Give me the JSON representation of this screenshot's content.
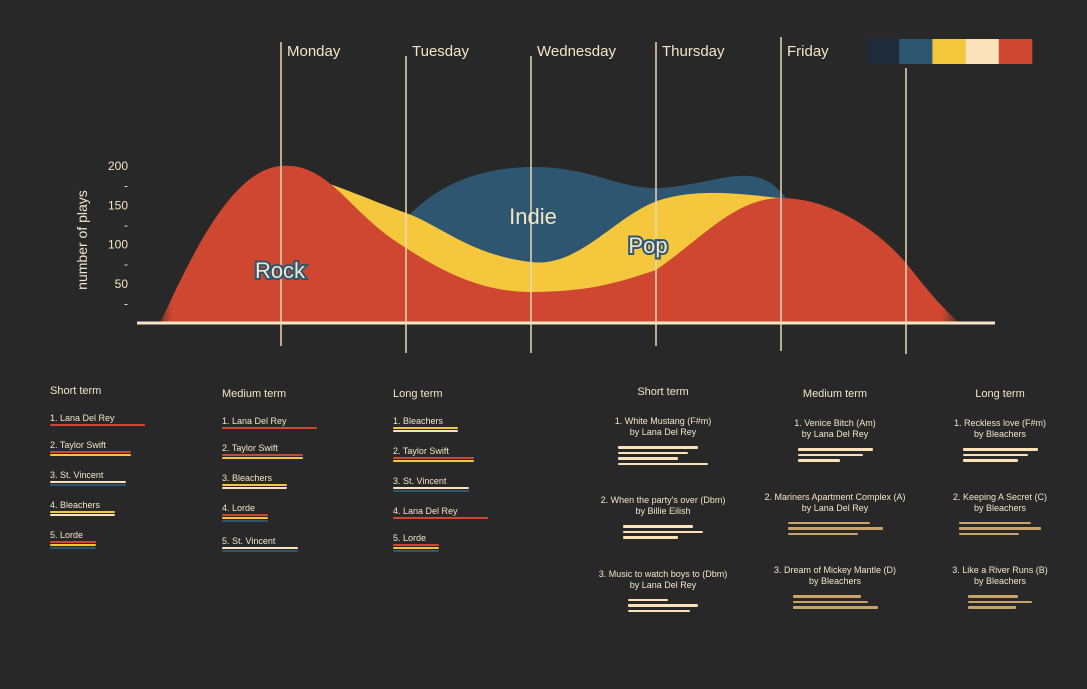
{
  "colors": {
    "background": "#282828",
    "cream": "#f3e6c8",
    "palette": [
      "#1f2a3a",
      "#2f5670",
      "#f5c73d",
      "#fbe2b8",
      "#cf4730"
    ],
    "rock": "#cf4730",
    "pop": "#f5c73d",
    "indie": "#2f5670",
    "tan": "#c9a36a"
  },
  "chart_data": {
    "type": "area",
    "x": [
      "Monday",
      "Tuesday",
      "Wednesday",
      "Thursday",
      "Friday"
    ],
    "ylabel": "number of plays",
    "yticks": [
      "200",
      "150",
      "100",
      "50"
    ],
    "ylim": [
      0,
      200
    ],
    "stacked": true,
    "series": [
      {
        "name": "Rock",
        "color": "#cf4730",
        "values": [
          200,
          130,
          40,
          120,
          60
        ]
      },
      {
        "name": "Pop",
        "color": "#f5c73d",
        "values": [
          0,
          45,
          50,
          35,
          0
        ]
      },
      {
        "name": "Indie",
        "color": "#2f5670",
        "values": [
          0,
          0,
          110,
          35,
          0
        ]
      }
    ],
    "legend": "top-right"
  },
  "artists": {
    "columns": [
      {
        "title": "Short term",
        "items": [
          {
            "label": "1. Lana Del Rey",
            "lines": [
              "#cf4730"
            ]
          },
          {
            "label": "2. Taylor Swift",
            "lines": [
              "#cf4730",
              "#f5c73d"
            ]
          },
          {
            "label": "3. St. Vincent",
            "lines": [
              "#fbe2b8",
              "#2f5670"
            ]
          },
          {
            "label": "4. Bleachers",
            "lines": [
              "#f5c73d",
              "#fbe2b8"
            ]
          },
          {
            "label": "5. Lorde",
            "lines": [
              "#cf4730",
              "#f5c73d",
              "#2f5670"
            ]
          }
        ]
      },
      {
        "title": "Medium term",
        "items": [
          {
            "label": "1. Lana Del Rey",
            "lines": [
              "#cf4730"
            ]
          },
          {
            "label": "2. Taylor Swift",
            "lines": [
              "#cf4730",
              "#f5c73d"
            ]
          },
          {
            "label": "3. Bleachers",
            "lines": [
              "#f5c73d",
              "#fbe2b8"
            ]
          },
          {
            "label": "4. Lorde",
            "lines": [
              "#cf4730",
              "#f5c73d",
              "#2f5670"
            ]
          },
          {
            "label": "5. St. Vincent",
            "lines": [
              "#fbe2b8",
              "#2f5670"
            ]
          }
        ]
      },
      {
        "title": "Long term",
        "items": [
          {
            "label": "1. Bleachers",
            "lines": [
              "#f5c73d",
              "#fbe2b8"
            ]
          },
          {
            "label": "2. Taylor Swift",
            "lines": [
              "#cf4730",
              "#f5c73d"
            ]
          },
          {
            "label": "3. St. Vincent",
            "lines": [
              "#fbe2b8",
              "#2f5670"
            ]
          },
          {
            "label": "4. Lana Del Rey",
            "lines": [
              "#cf4730"
            ]
          },
          {
            "label": "5. Lorde",
            "lines": [
              "#cf4730",
              "#f5c73d",
              "#2f5670"
            ]
          }
        ]
      }
    ]
  },
  "songs": {
    "columns": [
      {
        "title": "Short term",
        "items": [
          {
            "title": "1. White Mustang (F#m)",
            "artist": "by Lana Del Rey",
            "bar_color": "#fbe2b8",
            "bars": [
              80,
              70,
              60,
              90
            ]
          },
          {
            "title": "2. When the party's over (Dbm)",
            "artist": "by Billie Eilish",
            "bar_color": "#fbe2b8",
            "bars": [
              70,
              80,
              55
            ]
          },
          {
            "title": "3. Music to watch boys to (Dbm)",
            "artist": "by Lana Del Rey",
            "bar_color": "#fbe2b8",
            "bars": [
              40,
              70,
              62
            ]
          }
        ]
      },
      {
        "title": "Medium term",
        "items": [
          {
            "title": "1. Venice Bitch (Am)",
            "artist": "by Lana Del Rey",
            "bar_color": "#fbe2b8",
            "bars": [
              75,
              65,
              42
            ]
          },
          {
            "title": "2.  Mariners Apartment Complex (A)",
            "artist": "by Lana Del Rey",
            "bar_color": "#c9a36a",
            "bars": [
              82,
              95,
              70
            ]
          },
          {
            "title": "3. Dream of Mickey Mantle (D)",
            "artist": "by Bleachers",
            "bar_color": "#c9a36a",
            "bars": [
              68,
              75,
              85
            ]
          }
        ]
      },
      {
        "title": "Long term",
        "items": [
          {
            "title": "1. Reckless love (F#m)",
            "artist": "by Bleachers",
            "bar_color": "#fbe2b8",
            "bars": [
              75,
              65,
              55
            ]
          },
          {
            "title": "2.  Keeping A Secret (C)",
            "artist": "by Bleachers",
            "bar_color": "#c9a36a",
            "bars": [
              72,
              82,
              60
            ]
          },
          {
            "title": "3. Like a River Runs (B)",
            "artist": "by Bleachers",
            "bar_color": "#c9a36a",
            "bars": [
              50,
              64,
              48
            ]
          }
        ]
      }
    ]
  }
}
